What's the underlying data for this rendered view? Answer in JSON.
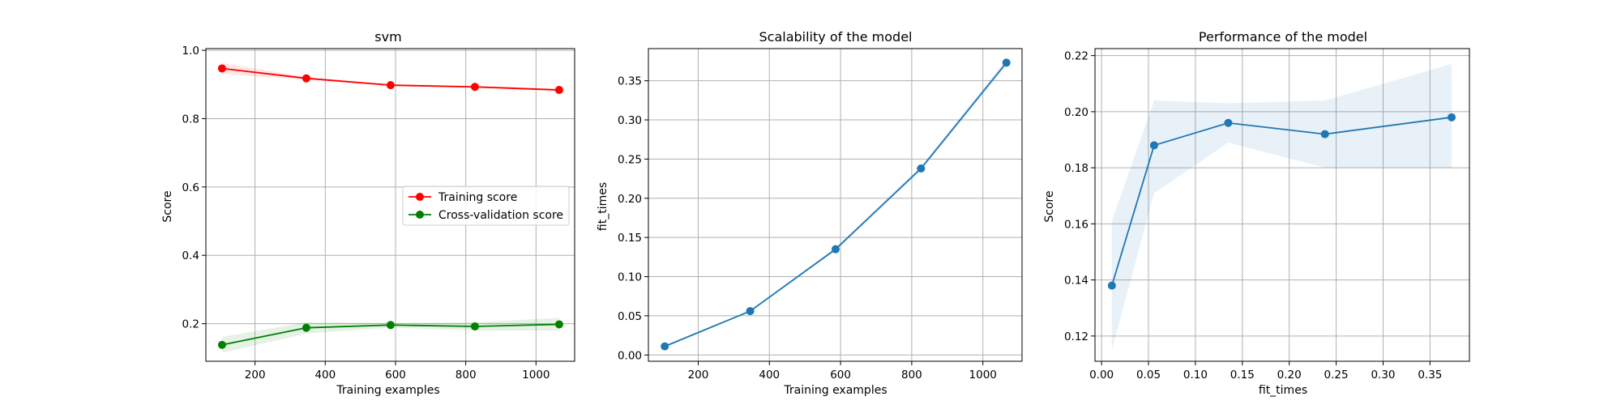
{
  "chart_data": [
    {
      "type": "line",
      "title": "svm",
      "xlabel": "Training examples",
      "ylabel": "Score",
      "xlim": [
        60,
        1110
      ],
      "ylim": [
        0.09,
        1.005
      ],
      "xticks": [
        200,
        400,
        600,
        800,
        1000
      ],
      "yticks": [
        0.2,
        0.4,
        0.6,
        0.8,
        1.0
      ],
      "xtick_labels": [
        "200",
        "400",
        "600",
        "800",
        "1000"
      ],
      "ytick_labels": [
        "0.2",
        "0.4",
        "0.6",
        "0.8",
        "1.0"
      ],
      "grid": true,
      "legend_position": "center-right",
      "x": [
        106,
        346,
        586,
        826,
        1066
      ],
      "series": [
        {
          "name": "Training score",
          "color": "#ff0000",
          "band_color": "#ff0000",
          "values": [
            0.947,
            0.918,
            0.898,
            0.893,
            0.884
          ],
          "band_lower": [
            0.931,
            0.914,
            0.895,
            0.89,
            0.88
          ],
          "band_upper": [
            0.963,
            0.922,
            0.901,
            0.896,
            0.888
          ]
        },
        {
          "name": "Cross-validation score",
          "color": "#008000",
          "band_color": "#008000",
          "values": [
            0.138,
            0.188,
            0.196,
            0.192,
            0.198
          ],
          "band_lower": [
            0.115,
            0.171,
            0.189,
            0.18,
            0.18
          ],
          "band_upper": [
            0.161,
            0.204,
            0.203,
            0.204,
            0.217
          ]
        }
      ]
    },
    {
      "type": "line",
      "title": "Scalability of the model",
      "xlabel": "Training examples",
      "ylabel": "fit_times",
      "xlim": [
        60,
        1110
      ],
      "ylim": [
        -0.008,
        0.391
      ],
      "xticks": [
        200,
        400,
        600,
        800,
        1000
      ],
      "yticks": [
        0.0,
        0.05,
        0.1,
        0.15,
        0.2,
        0.25,
        0.3,
        0.35
      ],
      "xtick_labels": [
        "200",
        "400",
        "600",
        "800",
        "1000"
      ],
      "ytick_labels": [
        "0.00",
        "0.05",
        "0.10",
        "0.15",
        "0.20",
        "0.25",
        "0.30",
        "0.35"
      ],
      "grid": true,
      "x": [
        106,
        346,
        586,
        826,
        1066
      ],
      "series": [
        {
          "color": "#1f77b4",
          "band_color": "#1f77b4",
          "values": [
            0.011,
            0.056,
            0.135,
            0.238,
            0.373
          ],
          "band_lower": [
            0.01,
            0.055,
            0.133,
            0.235,
            0.369
          ],
          "band_upper": [
            0.012,
            0.057,
            0.137,
            0.241,
            0.377
          ]
        }
      ]
    },
    {
      "type": "line",
      "title": "Performance of the model",
      "xlabel": "fit_times",
      "ylabel": "Score",
      "xlim": [
        -0.007,
        0.392
      ],
      "ylim": [
        0.111,
        0.2225
      ],
      "xticks": [
        0.0,
        0.05,
        0.1,
        0.15,
        0.2,
        0.25,
        0.3,
        0.35
      ],
      "yticks": [
        0.12,
        0.14,
        0.16,
        0.18,
        0.2,
        0.22
      ],
      "xtick_labels": [
        "0.00",
        "0.05",
        "0.10",
        "0.15",
        "0.20",
        "0.25",
        "0.30",
        "0.35"
      ],
      "ytick_labels": [
        "0.12",
        "0.14",
        "0.16",
        "0.18",
        "0.20",
        "0.22"
      ],
      "grid": true,
      "x": [
        0.011,
        0.056,
        0.135,
        0.238,
        0.373
      ],
      "series": [
        {
          "color": "#1f77b4",
          "band_color": "#1f77b4",
          "values": [
            0.138,
            0.188,
            0.196,
            0.192,
            0.198
          ],
          "band_lower": [
            0.115,
            0.171,
            0.189,
            0.18,
            0.18
          ],
          "band_upper": [
            0.161,
            0.204,
            0.203,
            0.204,
            0.217
          ]
        }
      ]
    }
  ]
}
